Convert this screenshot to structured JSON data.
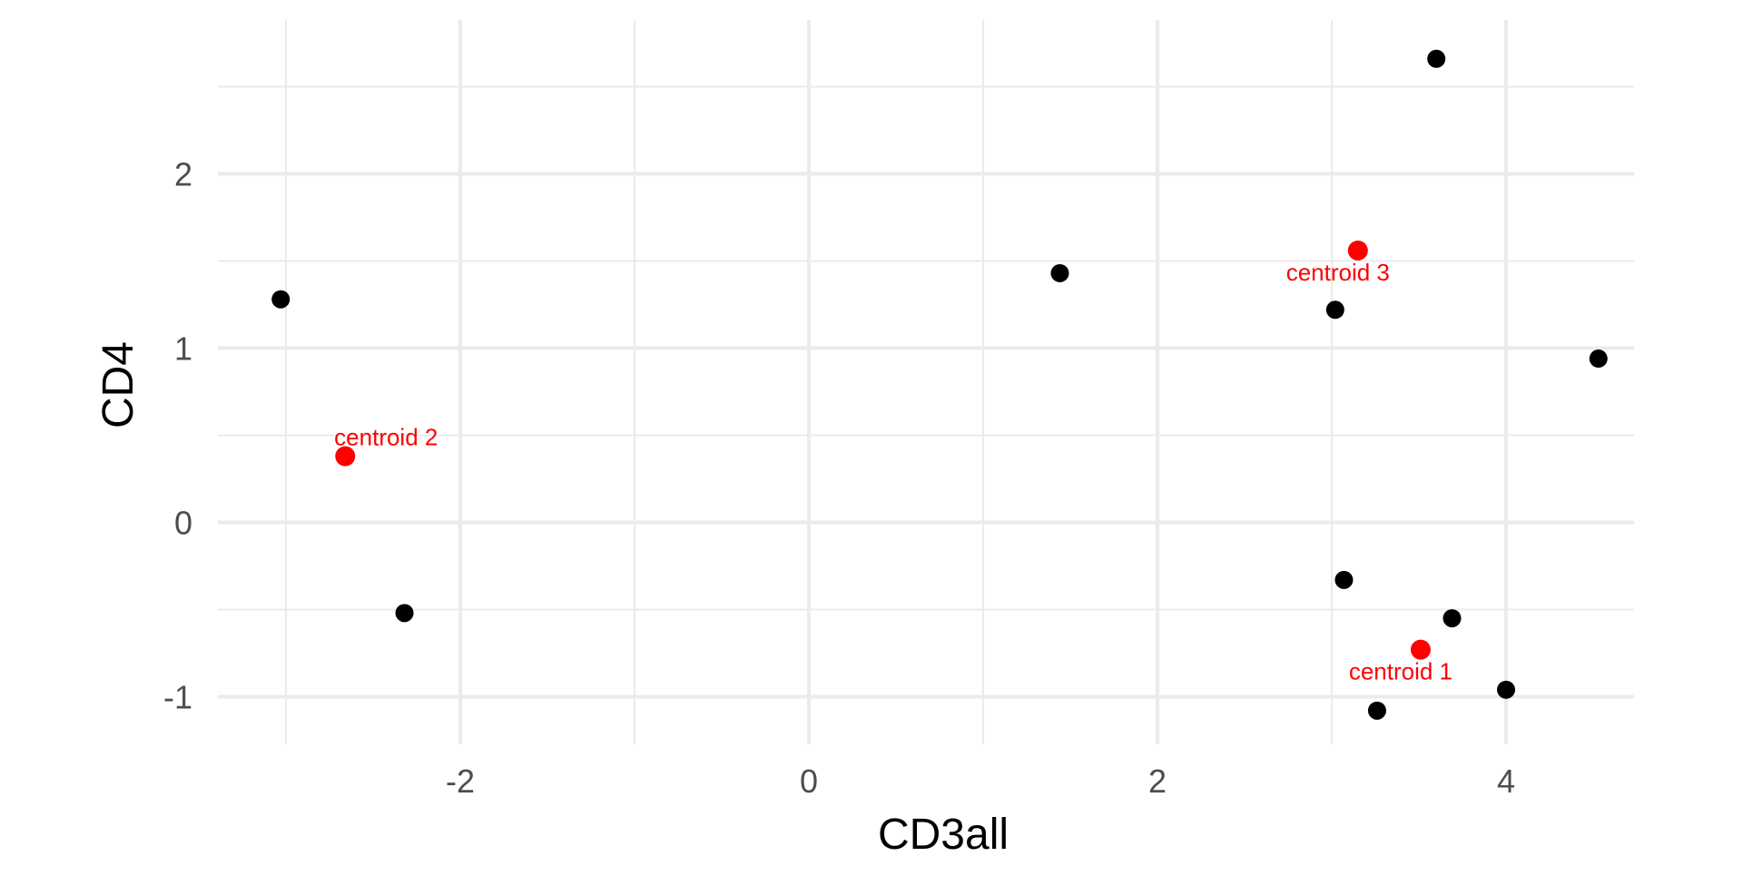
{
  "chart_data": {
    "type": "scatter",
    "title": "",
    "xlabel": "CD3all",
    "ylabel": "CD4",
    "xlim": [
      -3.4,
      4.95
    ],
    "ylim": [
      -1.25,
      2.85
    ],
    "x_major_ticks": [
      -2,
      0,
      2,
      4
    ],
    "x_minor_ticks": [
      -3,
      -1,
      1,
      3
    ],
    "y_major_ticks": [
      -1,
      0,
      1,
      2
    ],
    "y_minor_ticks": [
      -0.5,
      0.5,
      1.5,
      2.5
    ],
    "x_tick_labels": [
      "-2",
      "0",
      "2",
      "4"
    ],
    "y_tick_labels": [
      "-1",
      "0",
      "1",
      "2"
    ],
    "grid": true,
    "legend": "none",
    "series": [
      {
        "color": "#000000",
        "points": [
          {
            "x": -3.03,
            "y": 1.28
          },
          {
            "x": -2.32,
            "y": -0.52
          },
          {
            "x": 1.44,
            "y": 1.43
          },
          {
            "x": 3.02,
            "y": 1.22
          },
          {
            "x": 3.07,
            "y": -0.33
          },
          {
            "x": 3.6,
            "y": 2.66
          },
          {
            "x": 3.69,
            "y": -0.55
          },
          {
            "x": 4.0,
            "y": -0.96
          },
          {
            "x": 4.53,
            "y": 0.94
          },
          {
            "x": 3.26,
            "y": -1.08
          }
        ]
      },
      {
        "color": "#ff0000",
        "points": [
          {
            "x": 3.51,
            "y": -0.73,
            "label": "centroid 1"
          },
          {
            "x": -2.66,
            "y": 0.38,
            "label": "centroid 2"
          },
          {
            "x": 3.15,
            "y": 1.56,
            "label": "centroid 3"
          }
        ]
      }
    ],
    "colors": {
      "grid": "#ebebeb",
      "tick_text": "#4d4d4d",
      "axis_title": "#000000",
      "data_point": "#000000",
      "centroid": "#ff0000"
    }
  }
}
